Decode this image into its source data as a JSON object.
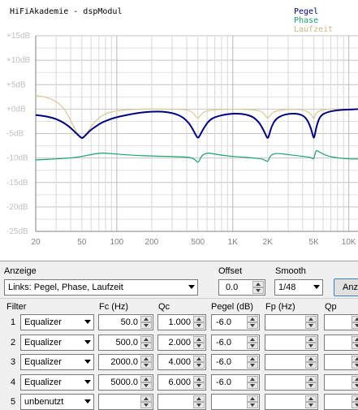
{
  "plot": {
    "title": "HiFiAkademie - dspModul",
    "legend": [
      "Pegel",
      "Phase",
      "Laufzeit"
    ],
    "colors": {
      "pegel": "#000080",
      "phase": "#1aa36b",
      "laufzeit": "#d6c993",
      "grid": "#c8c8c8",
      "axis": "#808080"
    }
  },
  "chart_data": {
    "type": "line",
    "title": "HiFiAkademie - dspModul",
    "xscale": "log",
    "xlim": [
      20,
      12000
    ],
    "ylim": [
      -25,
      15
    ],
    "yticks": [
      "+15dB",
      "+10dB",
      "+5dB",
      "+0dB",
      "-5dB",
      "-10dB",
      "-15dB",
      "-20dB",
      "-25dB"
    ],
    "xticks": [
      "20",
      "50",
      "100",
      "200",
      "500",
      "1K",
      "2K",
      "5K",
      "10K"
    ],
    "grid": true,
    "legend_position": "top-right",
    "series": [
      {
        "name": "Pegel",
        "x": [
          20,
          25,
          30,
          35,
          40,
          44,
          48,
          50,
          52,
          56,
          60,
          70,
          80,
          100,
          150,
          200,
          250,
          300,
          350,
          400,
          440,
          480,
          500,
          520,
          560,
          620,
          700,
          900,
          1100,
          1300,
          1500,
          1700,
          1850,
          1950,
          2000,
          2050,
          2150,
          2350,
          2700,
          3200,
          3800,
          4300,
          4700,
          4900,
          5000,
          5100,
          5300,
          5700,
          6500,
          8000,
          10000,
          12000
        ],
        "y": [
          -1.2,
          -1.5,
          -2,
          -2.8,
          -3.8,
          -4.8,
          -5.6,
          -6,
          -5.7,
          -4.9,
          -4.2,
          -3.1,
          -2.4,
          -1.6,
          -0.8,
          -0.5,
          -0.5,
          -0.8,
          -1.3,
          -2.3,
          -3.6,
          -5.3,
          -6,
          -5.4,
          -3.9,
          -2.4,
          -1.6,
          -1,
          -0.9,
          -1.1,
          -1.6,
          -2.8,
          -4.4,
          -5.6,
          -6,
          -5.5,
          -3.6,
          -2,
          -1.2,
          -0.9,
          -1,
          -1.8,
          -3.8,
          -5.4,
          -6,
          -5.2,
          -3.2,
          -1.3,
          -0.6,
          -0.2,
          -0.1,
          0
        ]
      },
      {
        "name": "Phase",
        "x": [
          20,
          30,
          40,
          50,
          60,
          70,
          80,
          100,
          150,
          200,
          300,
          400,
          450,
          480,
          500,
          520,
          540,
          600,
          700,
          900,
          1200,
          1500,
          1800,
          1900,
          2000,
          2050,
          2150,
          2400,
          3000,
          3800,
          4500,
          4800,
          5000,
          5200,
          5500,
          6500,
          8000,
          10000,
          12000
        ],
        "y": [
          -10.4,
          -10.2,
          -10,
          -9.7,
          -9.3,
          -9,
          -9,
          -9.2,
          -9.5,
          -9.6,
          -9.7,
          -9.8,
          -10,
          -10.5,
          -11,
          -10.3,
          -9.5,
          -8.9,
          -9.2,
          -9.6,
          -9.8,
          -10,
          -10.2,
          -10.5,
          -10.8,
          -10.2,
          -9.3,
          -9,
          -9.3,
          -9.6,
          -9.8,
          -10,
          -10.3,
          -8.3,
          -8.7,
          -9.6,
          -10,
          -10.2,
          -10.2
        ]
      },
      {
        "name": "Laufzeit",
        "x": [
          20,
          25,
          30,
          35,
          40,
          45,
          50,
          55,
          60,
          70,
          80,
          100,
          150,
          200,
          300,
          400,
          450,
          480,
          500,
          520,
          560,
          700,
          1000,
          1500,
          1800,
          1900,
          2000,
          2100,
          2300,
          3000,
          4000,
          4600,
          4900,
          5000,
          5100,
          5400,
          6500,
          8000,
          10000,
          12000
        ],
        "y": [
          2.8,
          2.4,
          1.6,
          0.2,
          -2.2,
          -4.8,
          -6,
          -5,
          -3.5,
          -1.8,
          -0.9,
          -0.3,
          0,
          0,
          0,
          -0.1,
          -0.6,
          -1.5,
          -2,
          -1.4,
          -0.5,
          -0.1,
          0,
          -0.1,
          -0.5,
          -1.3,
          -2,
          -1.2,
          -0.4,
          0,
          -0.1,
          -0.7,
          -1.7,
          -2,
          -1.3,
          -0.4,
          0,
          0,
          0,
          0
        ]
      }
    ]
  },
  "controls": {
    "anzeige_label": "Anzeige",
    "anzeige_value": "Links: Pegel, Phase, Laufzeit",
    "offset_label": "Offset",
    "offset_value": "0.0",
    "smooth_label": "Smooth",
    "smooth_value": "1/48",
    "apply_button": "Anz"
  },
  "filters": {
    "headers": {
      "filter": "Filter",
      "fc": "Fc (Hz)",
      "qc": "Qc",
      "pegel": "Pegel (dB)",
      "fp": "Fp (Hz)",
      "qp": "Qp"
    },
    "rows": [
      {
        "num": "1",
        "type": "Equalizer",
        "fc": "50.0",
        "qc": "1.000",
        "pegel": "-6.0",
        "fp": "",
        "qp": ""
      },
      {
        "num": "2",
        "type": "Equalizer",
        "fc": "500.0",
        "qc": "2.000",
        "pegel": "-6.0",
        "fp": "",
        "qp": ""
      },
      {
        "num": "3",
        "type": "Equalizer",
        "fc": "2000.0",
        "qc": "4.000",
        "pegel": "-6.0",
        "fp": "",
        "qp": ""
      },
      {
        "num": "4",
        "type": "Equalizer",
        "fc": "5000.0",
        "qc": "6.000",
        "pegel": "-6.0",
        "fp": "",
        "qp": ""
      },
      {
        "num": "5",
        "type": "unbenutzt",
        "fc": "",
        "qc": "",
        "pegel": "",
        "fp": "",
        "qp": ""
      }
    ]
  }
}
